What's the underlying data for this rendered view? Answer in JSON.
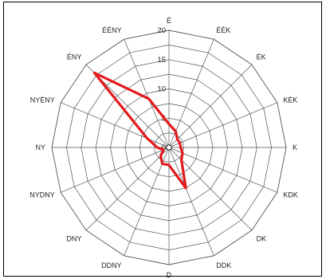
{
  "chart_data": {
    "type": "radar",
    "directions": [
      "É",
      "ÉÉK",
      "ÉK",
      "KÉK",
      "K",
      "KDK",
      "DK",
      "DDK",
      "D",
      "DDNY",
      "DNY",
      "NYDNY",
      "NY",
      "NYÉNY",
      "ÉNY",
      "ÉÉNY"
    ],
    "radial_ticks": [
      "0",
      "5",
      "10",
      "15",
      "20"
    ],
    "radial_range": [
      0,
      20
    ],
    "series": [
      {
        "values": [
          4,
          3,
          2,
          2,
          2,
          2.5,
          3,
          7.5,
          3,
          3,
          2,
          1,
          2,
          4,
          18,
          9
        ]
      }
    ],
    "colors": {
      "series": "#e41a1c",
      "grid": "#555555"
    }
  }
}
